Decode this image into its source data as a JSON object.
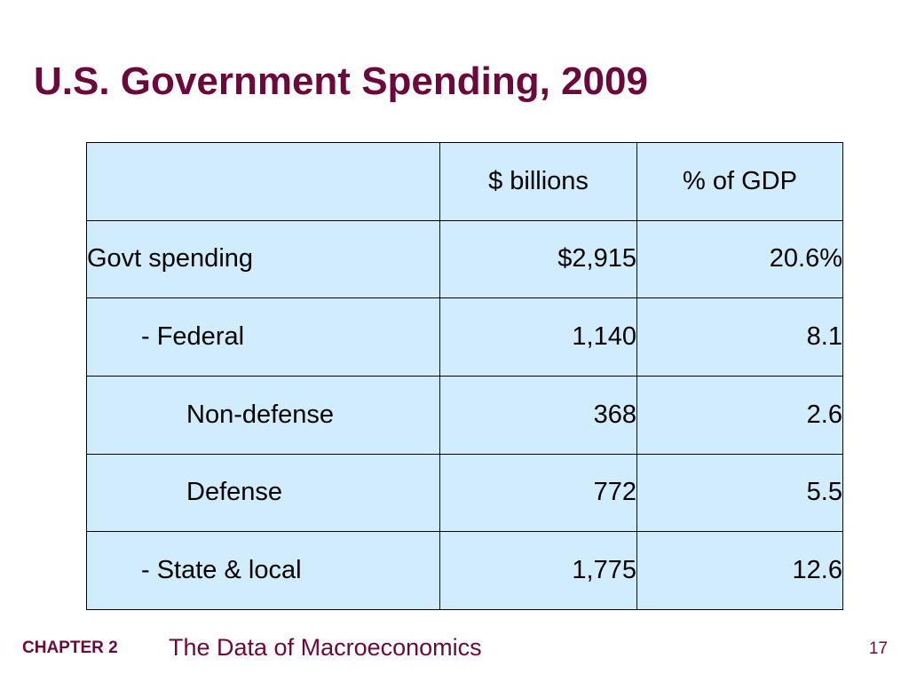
{
  "slide": {
    "title": "U.S. Government Spending, 2009"
  },
  "table": {
    "headers": [
      "",
      "$ billions",
      "% of GDP"
    ],
    "rows": [
      {
        "label": "Govt spending",
        "billions": "$2,915",
        "pct_gdp": "20.6%"
      },
      {
        "label": "- Federal",
        "billions": "1,140",
        "pct_gdp": "8.1"
      },
      {
        "label": "Non-defense",
        "billions": "368",
        "pct_gdp": "2.6"
      },
      {
        "label": "Defense",
        "billions": "772",
        "pct_gdp": "5.5"
      },
      {
        "label": "- State & local",
        "billions": "1,775",
        "pct_gdp": "12.6"
      }
    ]
  },
  "footer": {
    "chapter": "CHAPTER 2",
    "subject": "The Data of Macroeconomics",
    "page_number": "17"
  },
  "colors": {
    "title": "#6b0a3a",
    "table_fill": "#d1ecfd",
    "border": "#000000"
  }
}
